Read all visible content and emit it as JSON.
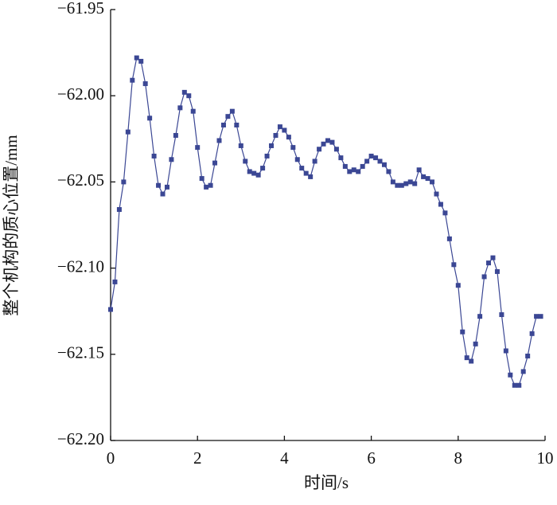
{
  "chart_data": {
    "type": "line",
    "xlabel": "时间/s",
    "ylabel": "整个机构的质心位置/mm",
    "x": [
      0,
      0.1,
      0.2,
      0.3,
      0.4,
      0.5,
      0.6,
      0.7,
      0.8,
      0.9,
      1,
      1.1,
      1.2,
      1.3,
      1.4,
      1.5,
      1.6,
      1.7,
      1.8,
      1.9,
      2,
      2.1,
      2.2,
      2.3,
      2.4,
      2.5,
      2.6,
      2.7,
      2.8,
      2.9,
      3,
      3.1,
      3.2,
      3.3,
      3.4,
      3.5,
      3.6,
      3.7,
      3.8,
      3.9,
      4,
      4.1,
      4.2,
      4.3,
      4.4,
      4.5,
      4.6,
      4.7,
      4.8,
      4.9,
      5,
      5.1,
      5.2,
      5.3,
      5.4,
      5.5,
      5.6,
      5.7,
      5.8,
      5.9,
      6,
      6.1,
      6.2,
      6.3,
      6.4,
      6.5,
      6.6,
      6.7,
      6.8,
      6.9,
      7,
      7.1,
      7.2,
      7.3,
      7.4,
      7.5,
      7.6,
      7.7,
      7.8,
      7.9,
      8,
      8.1,
      8.2,
      8.3,
      8.4,
      8.5,
      8.6,
      8.7,
      8.8,
      8.9,
      9,
      9.1,
      9.2,
      9.3,
      9.4,
      9.5,
      9.6,
      9.7,
      9.8,
      9.9
    ],
    "series": [
      {
        "color": "#3b4794",
        "values": [
          -62.124,
          -62.108,
          -62.066,
          -62.05,
          -62.021,
          -61.991,
          -61.978,
          -61.98,
          -61.993,
          -62.013,
          -62.035,
          -62.052,
          -62.057,
          -62.053,
          -62.037,
          -62.023,
          -62.007,
          -61.998,
          -62.0,
          -62.009,
          -62.03,
          -62.048,
          -62.053,
          -62.052,
          -62.039,
          -62.026,
          -62.017,
          -62.012,
          -62.009,
          -62.017,
          -62.029,
          -62.038,
          -62.044,
          -62.045,
          -62.046,
          -62.042,
          -62.035,
          -62.029,
          -62.023,
          -62.018,
          -62.02,
          -62.024,
          -62.03,
          -62.037,
          -62.042,
          -62.045,
          -62.047,
          -62.038,
          -62.031,
          -62.028,
          -62.026,
          -62.027,
          -62.031,
          -62.036,
          -62.041,
          -62.044,
          -62.043,
          -62.044,
          -62.041,
          -62.038,
          -62.035,
          -62.036,
          -62.038,
          -62.04,
          -62.044,
          -62.05,
          -62.052,
          -62.052,
          -62.051,
          -62.05,
          -62.051,
          -62.043,
          -62.047,
          -62.048,
          -62.05,
          -62.057,
          -62.063,
          -62.068,
          -62.083,
          -62.098,
          -62.11,
          -62.137,
          -62.152,
          -62.154,
          -62.144,
          -62.128,
          -62.105,
          -62.097,
          -62.094,
          -62.102,
          -62.127,
          -62.148,
          -62.162,
          -62.168,
          -62.168,
          -62.16,
          -62.151,
          -62.138,
          -62.128,
          -62.128
        ]
      }
    ],
    "xlim": [
      0,
      10
    ],
    "xticks": [
      0,
      2,
      4,
      6,
      8,
      10
    ],
    "ylim": [
      -62.2,
      -61.95
    ],
    "yticks": [
      {
        "value": -62.2,
        "label": "−62.20"
      },
      {
        "value": -62.15,
        "label": "−62.15"
      },
      {
        "value": -62.1,
        "label": "−62.10"
      },
      {
        "value": -62.05,
        "label": "−62.05"
      },
      {
        "value": -62.0,
        "label": "−62.00"
      },
      {
        "value": -61.95,
        "label": "−61.95"
      }
    ]
  }
}
